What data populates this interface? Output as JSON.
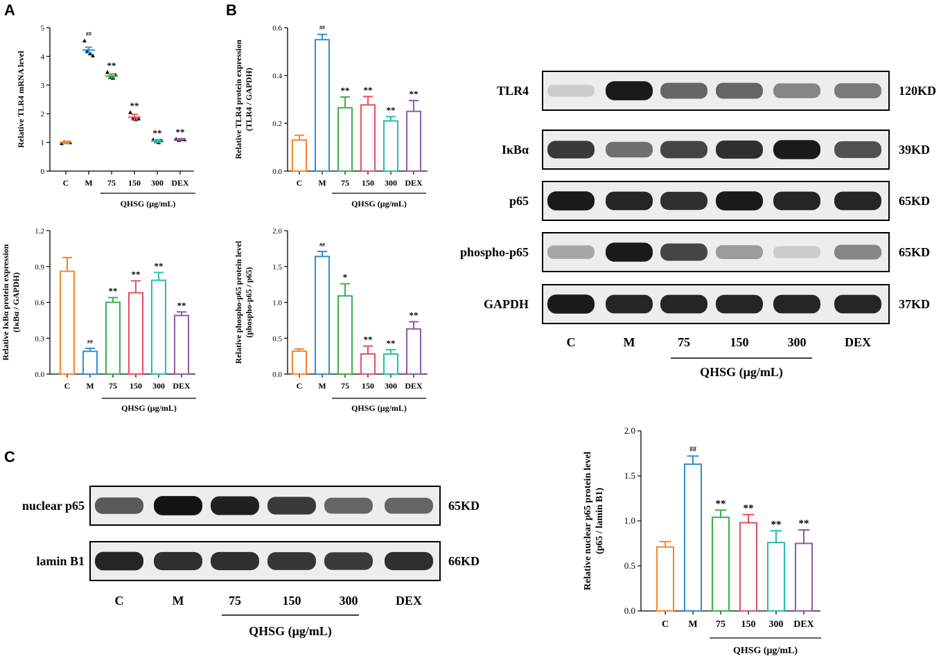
{
  "panels": {
    "a": "A",
    "b": "B",
    "c": "C"
  },
  "colors": {
    "C": "#f4862a",
    "M": "#2e8fd6",
    "75": "#3ab04a",
    "150": "#e5505f",
    "300": "#2bbbb0",
    "DEX": "#8f5aa8"
  },
  "group_label": "QHSG (μg/mL)",
  "chart_data": [
    {
      "id": "tlr4-mrna",
      "type": "scatter",
      "ylabel": "Relative TLR4 mRNA level",
      "categories": [
        "C",
        "M",
        "75",
        "150",
        "300",
        "DEX"
      ],
      "values": [
        1.0,
        4.22,
        3.32,
        1.88,
        1.05,
        1.1
      ],
      "errors": [
        0.04,
        0.1,
        0.07,
        0.1,
        0.05,
        0.03
      ],
      "points": [
        [
          0.97,
          1.02,
          1.0,
          1.0
        ],
        [
          4.55,
          4.2,
          4.1,
          4.03
        ],
        [
          3.45,
          3.27,
          3.25,
          3.35
        ],
        [
          2.05,
          1.83,
          1.8,
          1.83
        ],
        [
          1.1,
          1.03,
          1.0,
          1.07
        ],
        [
          1.12,
          1.08,
          1.1,
          1.1
        ]
      ],
      "sig": [
        "",
        "##",
        "**",
        "**",
        "**",
        "**"
      ],
      "ylim": [
        0,
        5
      ],
      "yticks": [
        "0",
        "1",
        "2",
        "3",
        "4",
        "5"
      ],
      "xlabel": "QHSG (μg/mL)"
    },
    {
      "id": "tlr4-protein",
      "type": "bar",
      "ylabel": "Relative TLR4 protein expression",
      "ylabel2": "(TLR4 / GAPDH)",
      "categories": [
        "C",
        "M",
        "75",
        "150",
        "300",
        "DEX"
      ],
      "values": [
        0.13,
        0.55,
        0.265,
        0.277,
        0.21,
        0.25
      ],
      "errors": [
        0.02,
        0.022,
        0.045,
        0.035,
        0.018,
        0.045
      ],
      "sig": [
        "",
        "##",
        "**",
        "**",
        "**",
        "**"
      ],
      "ylim": [
        0,
        0.6
      ],
      "yticks": [
        "0.0",
        "0.2",
        "0.4",
        "0.6"
      ],
      "xlabel": "QHSG (μg/mL)"
    },
    {
      "id": "ikba-protein",
      "type": "bar",
      "ylabel": "Relative IκBα protein expression",
      "ylabel2": "(IκBα / GAPDH)",
      "categories": [
        "C",
        "M",
        "75",
        "150",
        "300",
        "DEX"
      ],
      "values": [
        0.86,
        0.19,
        0.6,
        0.68,
        0.785,
        0.49
      ],
      "errors": [
        0.115,
        0.025,
        0.04,
        0.1,
        0.065,
        0.03
      ],
      "sig": [
        "",
        "##",
        "**",
        "**",
        "**",
        "**"
      ],
      "ylim": [
        0,
        1.2
      ],
      "yticks": [
        "0.0",
        "0.3",
        "0.6",
        "0.9",
        "1.2"
      ],
      "xlabel": "QHSG (μg/mL)"
    },
    {
      "id": "phospho-p65",
      "type": "bar",
      "ylabel": "Relative phospho-p65 protein level",
      "ylabel2": "(phospho-p65 / p65)",
      "categories": [
        "C",
        "M",
        "75",
        "150",
        "300",
        "DEX"
      ],
      "values": [
        0.32,
        1.64,
        1.09,
        0.28,
        0.28,
        0.63
      ],
      "errors": [
        0.03,
        0.07,
        0.17,
        0.11,
        0.06,
        0.1
      ],
      "sig": [
        "",
        "##",
        "*",
        "**",
        "**",
        "**"
      ],
      "ylim": [
        0,
        2.0
      ],
      "yticks": [
        "0.0",
        "0.5",
        "1.0",
        "1.5",
        "2.0"
      ],
      "xlabel": "QHSG (μg/mL)"
    },
    {
      "id": "nuclear-p65",
      "type": "bar",
      "ylabel": "Relative nuclear p65 protein level",
      "ylabel2": "(p65 / lamin B1)",
      "categories": [
        "C",
        "M",
        "75",
        "150",
        "300",
        "DEX"
      ],
      "values": [
        0.71,
        1.63,
        1.04,
        0.98,
        0.76,
        0.75
      ],
      "errors": [
        0.06,
        0.09,
        0.08,
        0.09,
        0.13,
        0.15
      ],
      "sig": [
        "",
        "##",
        "**",
        "**",
        "**",
        "**"
      ],
      "ylim": [
        0,
        2.0
      ],
      "yticks": [
        "0.0",
        "0.5",
        "1.0",
        "1.5",
        "2.0"
      ],
      "xlabel": "QHSG (μg/mL)"
    }
  ],
  "blot_b": {
    "rows": [
      {
        "label": "TLR4",
        "size": "120KD",
        "intensity": [
          0.12,
          0.95,
          0.6,
          0.6,
          0.45,
          0.5
        ]
      },
      {
        "label": "IκBα",
        "size": "39KD",
        "intensity": [
          0.8,
          0.55,
          0.75,
          0.85,
          0.95,
          0.7
        ]
      },
      {
        "label": "p65",
        "size": "65KD",
        "intensity": [
          0.95,
          0.9,
          0.85,
          0.95,
          0.9,
          0.9
        ]
      },
      {
        "label": "phospho-p65",
        "size": "65KD",
        "intensity": [
          0.3,
          0.95,
          0.75,
          0.35,
          0.12,
          0.45
        ]
      },
      {
        "label": "GAPDH",
        "size": "37KD",
        "intensity": [
          0.95,
          0.9,
          0.9,
          0.9,
          0.9,
          0.9
        ]
      }
    ],
    "lanes": [
      "C",
      "M",
      "75",
      "150",
      "300",
      "DEX"
    ],
    "group_label": "QHSG (μg/mL)"
  },
  "blot_c": {
    "rows": [
      {
        "label": "nuclear p65",
        "size": "65KD",
        "intensity": [
          0.65,
          0.98,
          0.92,
          0.8,
          0.6,
          0.6
        ]
      },
      {
        "label": "lamin B1",
        "size": "66KD",
        "intensity": [
          0.9,
          0.85,
          0.85,
          0.82,
          0.8,
          0.85
        ]
      }
    ],
    "lanes": [
      "C",
      "M",
      "75",
      "150",
      "300",
      "DEX"
    ],
    "group_label": "QHSG (μg/mL)"
  }
}
